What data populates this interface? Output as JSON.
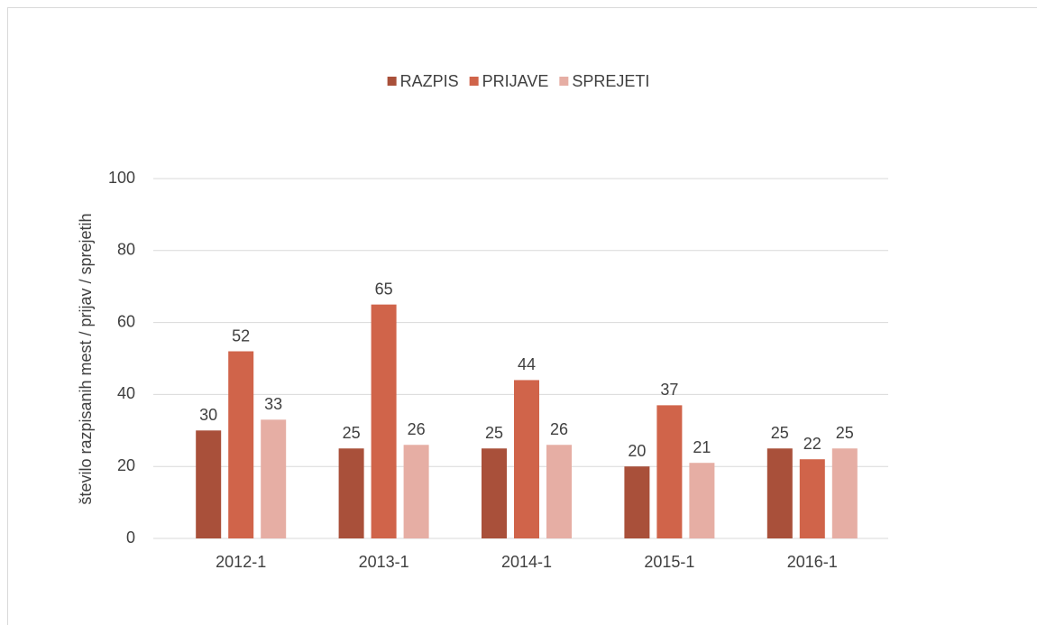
{
  "chart_data": {
    "type": "bar",
    "categories": [
      "2012-1",
      "2013-1",
      "2014-1",
      "2015-1",
      "2016-1"
    ],
    "series": [
      {
        "name": "RAZPIS",
        "color": "#a9503a",
        "values": [
          30,
          25,
          25,
          20,
          25
        ]
      },
      {
        "name": "PRIJAVE",
        "color": "#d0644a",
        "values": [
          52,
          65,
          44,
          37,
          22
        ]
      },
      {
        "name": "SPREJETI",
        "color": "#e6aea4",
        "values": [
          33,
          26,
          26,
          21,
          25
        ]
      }
    ],
    "ylabel": "število razpisanih mest / prijav / sprejetih",
    "ylim": [
      0,
      100
    ],
    "yticks": [
      0,
      20,
      40,
      60,
      80,
      100
    ],
    "grid": true,
    "legend": "top"
  }
}
